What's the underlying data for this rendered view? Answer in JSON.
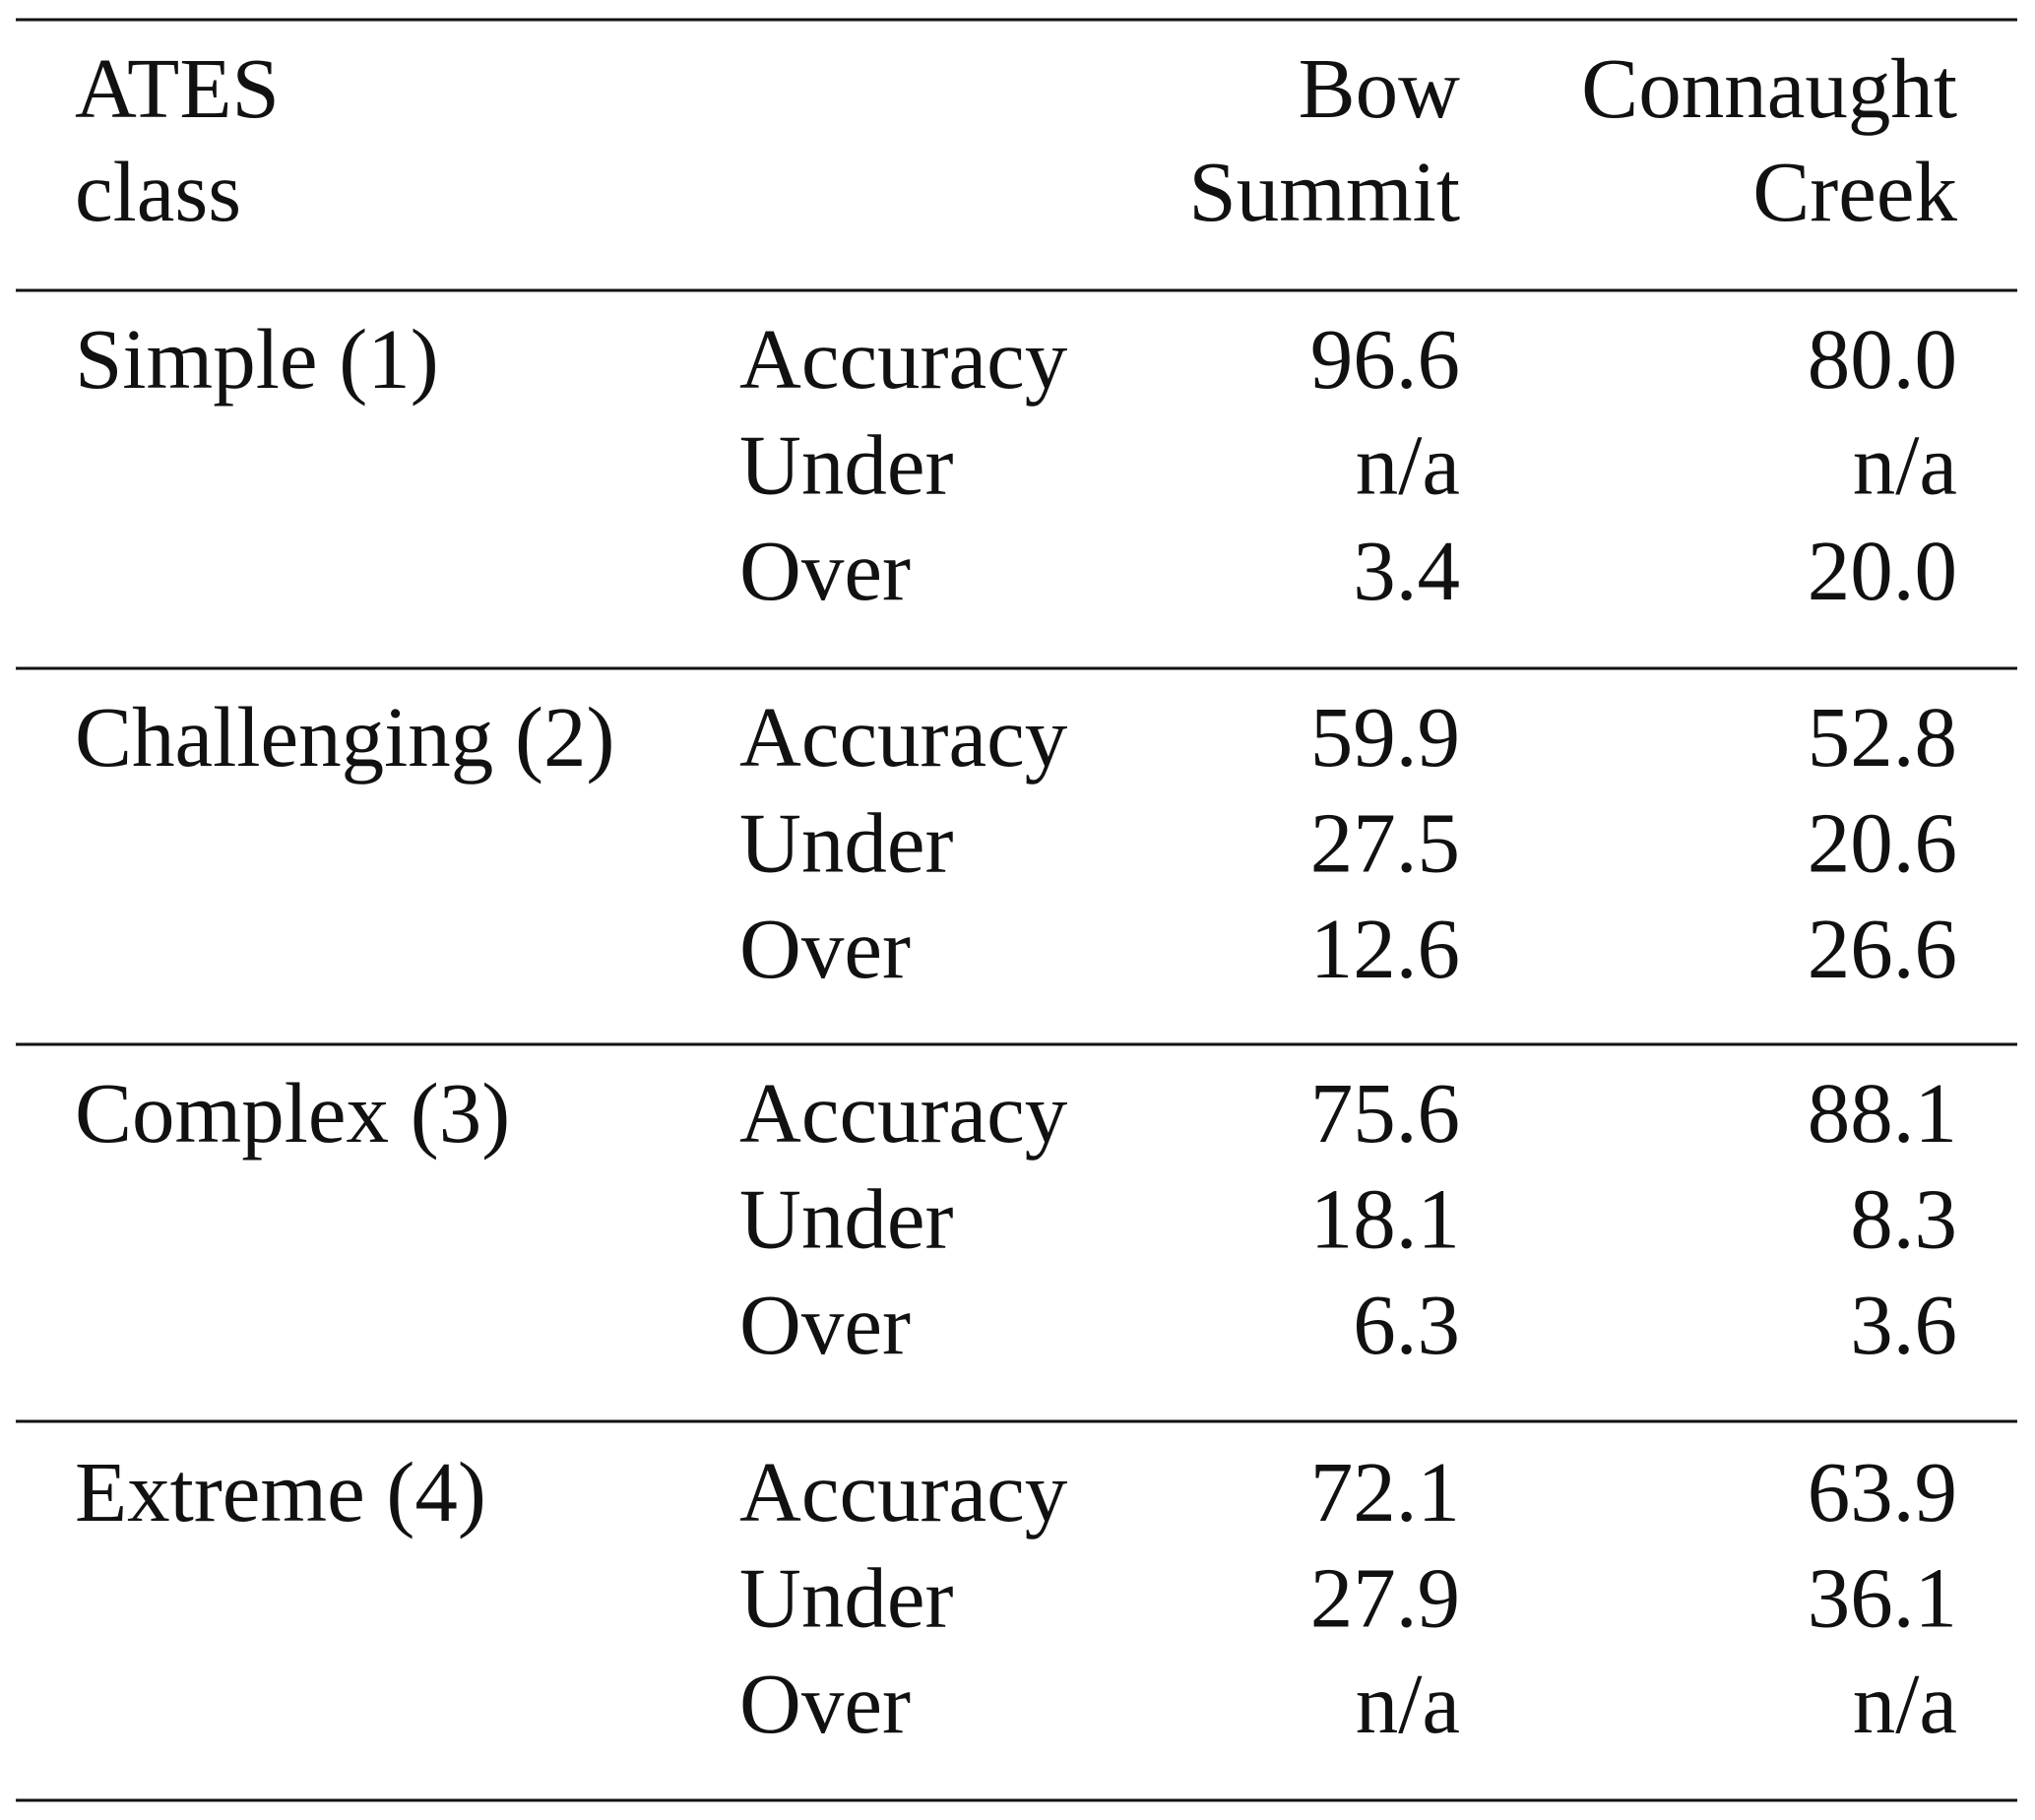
{
  "table": {
    "header": [
      [
        "ATES",
        "class"
      ],
      [
        "Bow",
        "Summit"
      ],
      [
        "Connaught",
        "Creek"
      ]
    ],
    "groups": [
      {
        "class": "Simple (1)",
        "rows": [
          [
            "Accuracy",
            "96.6",
            "80.0"
          ],
          [
            "Under",
            "n/a",
            "n/a"
          ],
          [
            "Over",
            "3.4",
            "20.0"
          ]
        ]
      },
      {
        "class": "Challenging (2)",
        "rows": [
          [
            "Accuracy",
            "59.9",
            "52.8"
          ],
          [
            "Under",
            "27.5",
            "20.6"
          ],
          [
            "Over",
            "12.6",
            "26.6"
          ]
        ]
      },
      {
        "class": "Complex (3)",
        "rows": [
          [
            "Accuracy",
            "75.6",
            "88.1"
          ],
          [
            "Under",
            "18.1",
            "8.3"
          ],
          [
            "Over",
            "6.3",
            "3.6"
          ]
        ]
      },
      {
        "class": "Extreme (4)",
        "rows": [
          [
            "Accuracy",
            "72.1",
            "63.9"
          ],
          [
            "Under",
            "27.9",
            "36.1"
          ],
          [
            "Over",
            "n/a",
            "n/a"
          ]
        ]
      }
    ]
  }
}
